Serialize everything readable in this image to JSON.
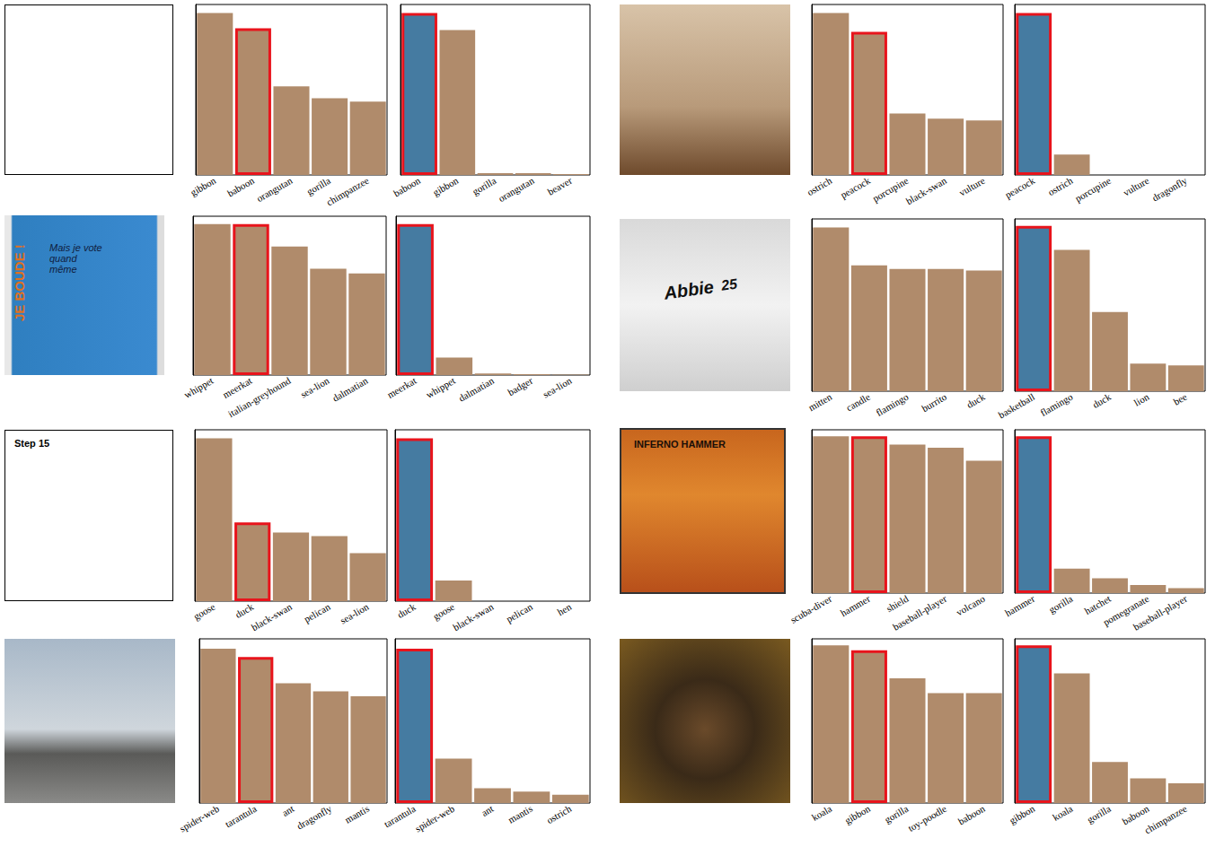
{
  "chart_data": [
    {
      "type": "image"
    },
    {
      "type": "bar",
      "categories": [
        "gibbon",
        "baboon",
        "orangutan",
        "gorilla",
        "chimpanzee"
      ],
      "values": [
        0.95,
        0.86,
        0.52,
        0.45,
        0.43
      ],
      "colors": [
        "#b08b6b",
        "#b08b6b",
        "#b08b6b",
        "#b08b6b",
        "#b08b6b"
      ],
      "ylim": [
        0,
        1
      ],
      "tick_labels": "x",
      "grid": false
    },
    {
      "type": "bar",
      "categories": [
        "baboon",
        "gibbon",
        "gorilla",
        "orangutan",
        "beaver"
      ],
      "values": [
        0.95,
        0.85,
        0.01,
        0.01,
        0.005
      ],
      "colors": [
        "#457ba1",
        "#b08b6b",
        "#b08b6b",
        "#b08b6b",
        "#b08b6b"
      ],
      "ylim": [
        0,
        1
      ],
      "tick_labels": "x",
      "grid": false
    },
    {
      "type": "image"
    },
    {
      "type": "bar",
      "categories": [
        "ostrich",
        "peacock",
        "porcupine",
        "black-swan",
        "vulture"
      ],
      "values": [
        0.95,
        0.84,
        0.36,
        0.33,
        0.32
      ],
      "colors": [
        "#b08b6b",
        "#b08b6b",
        "#b08b6b",
        "#b08b6b",
        "#b08b6b"
      ],
      "ylim": [
        0,
        1
      ],
      "tick_labels": "x",
      "grid": false
    },
    {
      "type": "bar",
      "categories": [
        "peacock",
        "ostrich",
        "porcupine",
        "vulture",
        "dragonfly"
      ],
      "values": [
        0.95,
        0.12,
        0,
        0,
        0
      ],
      "colors": [
        "#457ba1",
        "#b08b6b",
        "#b08b6b",
        "#b08b6b",
        "#b08b6b"
      ],
      "ylim": [
        0,
        1
      ],
      "tick_labels": "x",
      "grid": false
    },
    {
      "type": "image",
      "annotations": [
        "JE BOUDE !",
        "Mais je vote quand même"
      ]
    },
    {
      "type": "bar",
      "categories": [
        "whippet",
        "meerkat",
        "italian-greyhound",
        "sea-lion",
        "dalmatian"
      ],
      "values": [
        0.95,
        0.95,
        0.81,
        0.67,
        0.64
      ],
      "colors": [
        "#b08b6b",
        "#b08b6b",
        "#b08b6b",
        "#b08b6b",
        "#b08b6b"
      ],
      "ylim": [
        0,
        1
      ],
      "tick_labels": "x",
      "grid": false
    },
    {
      "type": "bar",
      "categories": [
        "meerkat",
        "whippet",
        "dalmatian",
        "badger",
        "sea-lion"
      ],
      "values": [
        0.95,
        0.11,
        0.01,
        0.005,
        0.003
      ],
      "colors": [
        "#457ba1",
        "#b08b6b",
        "#b08b6b",
        "#b08b6b",
        "#b08b6b"
      ],
      "ylim": [
        0,
        1
      ],
      "tick_labels": "x",
      "grid": false
    },
    {
      "type": "image",
      "annotations": [
        "Abbie",
        "25"
      ]
    },
    {
      "type": "bar",
      "categories": [
        "mitten",
        "candle",
        "flamingo",
        "burrito",
        "duck"
      ],
      "values": [
        0.95,
        0.73,
        0.71,
        0.71,
        0.7
      ],
      "colors": [
        "#b08b6b",
        "#b08b6b",
        "#b08b6b",
        "#b08b6b",
        "#b08b6b"
      ],
      "ylim": [
        0,
        1
      ],
      "tick_labels": "x",
      "grid": false
    },
    {
      "type": "bar",
      "categories": [
        "basketball",
        "flamingo",
        "duck",
        "lion",
        "bee"
      ],
      "values": [
        0.96,
        0.82,
        0.46,
        0.16,
        0.15
      ],
      "colors": [
        "#457ba1",
        "#b08b6b",
        "#b08b6b",
        "#b08b6b",
        "#b08b6b"
      ],
      "ylim": [
        0,
        1
      ],
      "tick_labels": "x",
      "grid": false
    },
    {
      "type": "image",
      "annotations": [
        "Step 15"
      ]
    },
    {
      "type": "bar",
      "categories": [
        "goose",
        "duck",
        "black-swan",
        "pelican",
        "sea-lion"
      ],
      "values": [
        0.95,
        0.46,
        0.4,
        0.38,
        0.28
      ],
      "colors": [
        "#b08b6b",
        "#b08b6b",
        "#b08b6b",
        "#b08b6b",
        "#b08b6b"
      ],
      "ylim": [
        0,
        1
      ],
      "tick_labels": "x",
      "grid": false
    },
    {
      "type": "bar",
      "categories": [
        "duck",
        "goose",
        "black-swan",
        "pelican",
        "hen"
      ],
      "values": [
        0.95,
        0.12,
        0,
        0,
        0
      ],
      "colors": [
        "#457ba1",
        "#b08b6b",
        "#b08b6b",
        "#b08b6b",
        "#b08b6b"
      ],
      "ylim": [
        0,
        1
      ],
      "tick_labels": "x",
      "grid": false
    },
    {
      "type": "image",
      "annotations": [
        "INFERNO HAMMER"
      ]
    },
    {
      "type": "bar",
      "categories": [
        "scuba-diver",
        "hammer",
        "shield",
        "baseball-player",
        "volcano"
      ],
      "values": [
        0.96,
        0.96,
        0.91,
        0.89,
        0.81
      ],
      "colors": [
        "#b08b6b",
        "#b08b6b",
        "#b08b6b",
        "#b08b6b",
        "#b08b6b"
      ],
      "ylim": [
        0,
        1
      ],
      "tick_labels": "x",
      "grid": false
    },
    {
      "type": "bar",
      "categories": [
        "hammer",
        "gorilla",
        "hatchet",
        "pomegranate",
        "baseball-player"
      ],
      "values": [
        0.96,
        0.15,
        0.09,
        0.05,
        0.03
      ],
      "colors": [
        "#457ba1",
        "#b08b6b",
        "#b08b6b",
        "#b08b6b",
        "#b08b6b"
      ],
      "ylim": [
        0,
        1
      ],
      "tick_labels": "x",
      "grid": false
    },
    {
      "type": "image"
    },
    {
      "type": "bar",
      "categories": [
        "spider-web",
        "tarantula",
        "ant",
        "dragonfly",
        "mantis"
      ],
      "values": [
        0.94,
        0.89,
        0.73,
        0.68,
        0.65
      ],
      "colors": [
        "#b08b6b",
        "#b08b6b",
        "#b08b6b",
        "#b08b6b",
        "#b08b6b"
      ],
      "ylim": [
        0,
        1
      ],
      "tick_labels": "x",
      "grid": false
    },
    {
      "type": "bar",
      "categories": [
        "tarantula",
        "spider-web",
        "ant",
        "mantis",
        "ostrich"
      ],
      "values": [
        0.94,
        0.27,
        0.09,
        0.07,
        0.05
      ],
      "colors": [
        "#457ba1",
        "#b08b6b",
        "#b08b6b",
        "#b08b6b",
        "#b08b6b"
      ],
      "ylim": [
        0,
        1
      ],
      "tick_labels": "x",
      "grid": false
    },
    {
      "type": "image"
    },
    {
      "type": "bar",
      "categories": [
        "koala",
        "gibbon",
        "gorilla",
        "toy-poodle",
        "baboon"
      ],
      "values": [
        0.96,
        0.93,
        0.76,
        0.67,
        0.67
      ],
      "colors": [
        "#b08b6b",
        "#b08b6b",
        "#b08b6b",
        "#b08b6b",
        "#b08b6b"
      ],
      "ylim": [
        0,
        1
      ],
      "tick_labels": "x",
      "grid": false
    },
    {
      "type": "bar",
      "categories": [
        "gibbon",
        "koala",
        "gorilla",
        "baboon",
        "chimpanzee"
      ],
      "values": [
        0.96,
        0.79,
        0.25,
        0.15,
        0.12
      ],
      "colors": [
        "#457ba1",
        "#b08b6b",
        "#b08b6b",
        "#b08b6b",
        "#b08b6b"
      ],
      "ylim": [
        0,
        1
      ],
      "tick_labels": "x",
      "grid": false
    }
  ]
}
